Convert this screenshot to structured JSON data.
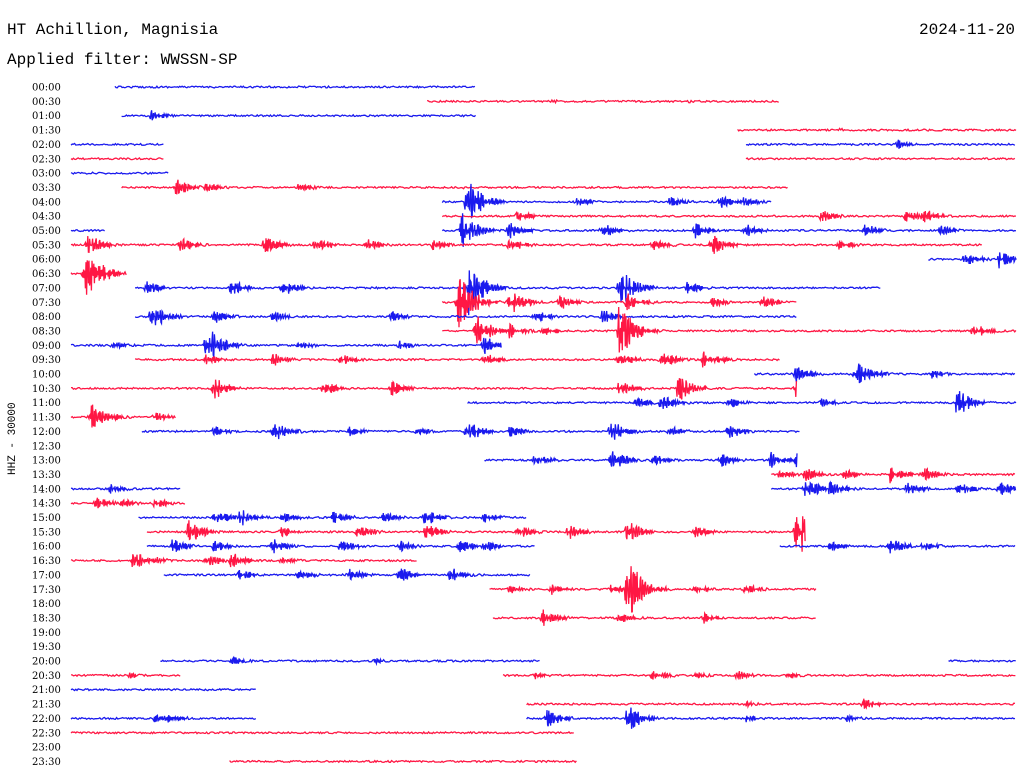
{
  "header": {
    "station": "HT Achillion, Magnisia",
    "date": "2024-11-20",
    "filter": "Applied filter: WWSSN-SP"
  },
  "chart_data": {
    "type": "line",
    "title": "HT Achillion, Magnisia",
    "ylabel": "HHZ - 30000",
    "x_unit": "minutes",
    "xlim": [
      0,
      30
    ],
    "colors": [
      "#1a1aee",
      "#ff1744"
    ],
    "rows": [
      {
        "label": "00:00",
        "segments": [
          [
            2.6,
            24.0
          ]
        ],
        "events": []
      },
      {
        "label": "00:30",
        "segments": [
          [
            21.1,
            42.0
          ]
        ],
        "events": [
          [
            28.5,
            2
          ],
          [
            36.5,
            2
          ]
        ]
      },
      {
        "label": "01:00",
        "segments": [
          [
            3.0,
            24.0
          ]
        ],
        "events": [
          [
            4.8,
            6
          ]
        ]
      },
      {
        "label": "01:30",
        "segments": [
          [
            39.5,
            56.0
          ]
        ],
        "events": [
          [
            45.5,
            2
          ]
        ]
      },
      {
        "label": "02:00",
        "segments": [
          [
            0.0,
            5.5
          ],
          [
            40.0,
            56.0
          ]
        ],
        "events": [
          [
            49.0,
            5
          ]
        ]
      },
      {
        "label": "02:30",
        "segments": [
          [
            0.0,
            5.5
          ],
          [
            40.0,
            56.0
          ]
        ],
        "events": []
      },
      {
        "label": "03:00",
        "segments": [
          [
            0.0,
            5.8
          ]
        ],
        "events": []
      },
      {
        "label": "03:30",
        "segments": [
          [
            3.0,
            42.5
          ]
        ],
        "events": [
          [
            6.2,
            10
          ],
          [
            8.0,
            6
          ],
          [
            13.5,
            5
          ],
          [
            23.0,
            2
          ]
        ]
      },
      {
        "label": "04:00",
        "segments": [
          [
            22.0,
            41.5
          ]
        ],
        "events": [
          [
            23.5,
            26
          ],
          [
            30.0,
            5
          ],
          [
            35.5,
            6
          ],
          [
            38.5,
            8
          ],
          [
            39.8,
            6
          ]
        ]
      },
      {
        "label": "04:30",
        "segments": [
          [
            22.0,
            56.0
          ]
        ],
        "events": [
          [
            26.5,
            6
          ],
          [
            44.5,
            7
          ],
          [
            49.5,
            6
          ],
          [
            50.5,
            9
          ]
        ]
      },
      {
        "label": "05:00",
        "segments": [
          [
            0.0,
            2.0
          ],
          [
            22.0,
            56.0
          ]
        ],
        "events": [
          [
            23.2,
            18
          ],
          [
            26.0,
            10
          ],
          [
            31.5,
            8
          ],
          [
            37.0,
            8
          ],
          [
            40.0,
            7
          ],
          [
            47.0,
            8
          ],
          [
            51.5,
            6
          ]
        ]
      },
      {
        "label": "05:30",
        "segments": [
          [
            0.0,
            54.0
          ]
        ],
        "events": [
          [
            1.0,
            12
          ],
          [
            6.5,
            8
          ],
          [
            11.5,
            9
          ],
          [
            14.5,
            8
          ],
          [
            17.5,
            7
          ],
          [
            21.5,
            6
          ],
          [
            26.0,
            8
          ],
          [
            34.5,
            7
          ],
          [
            38.0,
            12
          ],
          [
            45.5,
            6
          ]
        ]
      },
      {
        "label": "06:00",
        "segments": [
          [
            50.8,
            56.0
          ]
        ],
        "events": [
          [
            53.0,
            8
          ],
          [
            55.0,
            10
          ]
        ]
      },
      {
        "label": "06:30",
        "segments": [
          [
            0.0,
            3.3
          ]
        ],
        "events": [
          [
            0.8,
            30
          ],
          [
            1.5,
            15
          ]
        ]
      },
      {
        "label": "07:00",
        "segments": [
          [
            3.8,
            48.0
          ]
        ],
        "events": [
          [
            4.5,
            7
          ],
          [
            9.5,
            9
          ],
          [
            12.5,
            10
          ],
          [
            23.5,
            30
          ],
          [
            32.5,
            22
          ],
          [
            36.5,
            7
          ]
        ]
      },
      {
        "label": "07:30",
        "segments": [
          [
            22.0,
            43.0
          ]
        ],
        "events": [
          [
            23.0,
            30
          ],
          [
            26.0,
            14
          ],
          [
            29.0,
            8
          ],
          [
            33.0,
            10
          ],
          [
            38.0,
            6
          ],
          [
            41.0,
            7
          ]
        ]
      },
      {
        "label": "08:00",
        "segments": [
          [
            3.8,
            43.0
          ]
        ],
        "events": [
          [
            4.8,
            14
          ],
          [
            8.5,
            8
          ],
          [
            12.0,
            6
          ],
          [
            19.0,
            6
          ],
          [
            27.5,
            8
          ],
          [
            31.5,
            8
          ]
        ]
      },
      {
        "label": "08:30",
        "segments": [
          [
            22.0,
            56.0
          ]
        ],
        "events": [
          [
            24.0,
            18
          ],
          [
            26.0,
            8
          ],
          [
            28.0,
            6
          ],
          [
            32.5,
            30
          ],
          [
            53.5,
            9
          ]
        ]
      },
      {
        "label": "09:00",
        "segments": [
          [
            0.0,
            25.5
          ]
        ],
        "events": [
          [
            2.5,
            5
          ],
          [
            8.0,
            22
          ],
          [
            13.5,
            5
          ],
          [
            19.5,
            5
          ],
          [
            24.5,
            10
          ]
        ]
      },
      {
        "label": "09:30",
        "segments": [
          [
            3.8,
            42.0
          ]
        ],
        "events": [
          [
            8.0,
            6
          ],
          [
            12.0,
            7
          ],
          [
            16.0,
            6
          ],
          [
            24.5,
            8
          ],
          [
            32.5,
            8
          ],
          [
            35.0,
            10
          ],
          [
            37.5,
            12
          ]
        ]
      },
      {
        "label": "10:00",
        "segments": [
          [
            40.5,
            56.0
          ]
        ],
        "events": [
          [
            43.0,
            9
          ],
          [
            46.5,
            17
          ],
          [
            51.0,
            5
          ]
        ]
      },
      {
        "label": "10:30",
        "segments": [
          [
            0.0,
            43.0
          ]
        ],
        "events": [
          [
            8.5,
            12
          ],
          [
            15.0,
            8
          ],
          [
            19.0,
            8
          ],
          [
            32.5,
            10
          ],
          [
            36.0,
            14
          ],
          [
            43.0,
            14
          ]
        ]
      },
      {
        "label": "11:00",
        "segments": [
          [
            23.5,
            56.0
          ]
        ],
        "events": [
          [
            33.5,
            6
          ],
          [
            35.0,
            10
          ],
          [
            39.0,
            6
          ],
          [
            44.5,
            5
          ],
          [
            52.5,
            15
          ]
        ]
      },
      {
        "label": "11:30",
        "segments": [
          [
            0.0,
            6.2
          ]
        ],
        "events": [
          [
            1.2,
            14
          ],
          [
            2.5,
            4
          ],
          [
            5.0,
            6
          ]
        ]
      },
      {
        "label": "12:00",
        "segments": [
          [
            4.2,
            43.2
          ]
        ],
        "events": [
          [
            8.5,
            6
          ],
          [
            12.0,
            12
          ],
          [
            16.5,
            6
          ],
          [
            20.5,
            5
          ],
          [
            23.5,
            12
          ],
          [
            26.0,
            6
          ],
          [
            32.0,
            12
          ],
          [
            35.5,
            6
          ],
          [
            39.0,
            8
          ]
        ]
      },
      {
        "label": "12:30",
        "segments": [],
        "events": []
      },
      {
        "label": "13:00",
        "segments": [
          [
            24.5,
            43.0
          ]
        ],
        "events": [
          [
            27.5,
            8
          ],
          [
            32.0,
            12
          ],
          [
            34.5,
            8
          ],
          [
            38.5,
            8
          ],
          [
            41.5,
            9
          ],
          [
            43.0,
            8
          ]
        ]
      },
      {
        "label": "13:30",
        "segments": [
          [
            41.5,
            56.0
          ]
        ],
        "events": [
          [
            42.0,
            6
          ],
          [
            43.5,
            8
          ],
          [
            45.8,
            6
          ],
          [
            48.5,
            10
          ],
          [
            50.5,
            8
          ]
        ]
      },
      {
        "label": "14:00",
        "segments": [
          [
            0.0,
            6.5
          ],
          [
            41.5,
            56.0
          ]
        ],
        "events": [
          [
            2.3,
            6
          ],
          [
            43.5,
            12
          ],
          [
            45.0,
            10
          ],
          [
            49.5,
            8
          ],
          [
            52.5,
            8
          ],
          [
            55.0,
            8
          ]
        ]
      },
      {
        "label": "14:30",
        "segments": [
          [
            0.0,
            6.8
          ]
        ],
        "events": [
          [
            1.5,
            7
          ],
          [
            3.0,
            5
          ],
          [
            5.0,
            6
          ]
        ]
      },
      {
        "label": "15:00",
        "segments": [
          [
            4.0,
            27.0
          ]
        ],
        "events": [
          [
            8.5,
            9
          ],
          [
            10.0,
            10
          ],
          [
            12.5,
            7
          ],
          [
            15.5,
            8
          ],
          [
            18.5,
            7
          ],
          [
            21.0,
            9
          ],
          [
            24.5,
            6
          ]
        ]
      },
      {
        "label": "15:30",
        "segments": [
          [
            4.5,
            43.5
          ]
        ],
        "events": [
          [
            7.0,
            14
          ],
          [
            12.5,
            7
          ],
          [
            17.0,
            8
          ],
          [
            21.0,
            10
          ],
          [
            26.5,
            8
          ],
          [
            29.5,
            8
          ],
          [
            33.0,
            12
          ],
          [
            37.0,
            7
          ],
          [
            43.0,
            30
          ]
        ]
      },
      {
        "label": "16:00",
        "segments": [
          [
            4.5,
            27.5
          ],
          [
            42.0,
            56.0
          ]
        ],
        "events": [
          [
            6.0,
            8
          ],
          [
            8.5,
            6
          ],
          [
            12.0,
            8
          ],
          [
            16.0,
            7
          ],
          [
            19.5,
            6
          ],
          [
            23.0,
            8
          ],
          [
            24.5,
            6
          ],
          [
            45.0,
            6
          ],
          [
            48.5,
            9
          ],
          [
            50.5,
            6
          ]
        ]
      },
      {
        "label": "16:30",
        "segments": [
          [
            0.0,
            20.5
          ]
        ],
        "events": [
          [
            3.7,
            10
          ],
          [
            5.0,
            4
          ],
          [
            8.0,
            7
          ],
          [
            9.5,
            9
          ],
          [
            12.5,
            5
          ]
        ]
      },
      {
        "label": "17:00",
        "segments": [
          [
            5.5,
            27.2
          ]
        ],
        "events": [
          [
            10.0,
            6
          ],
          [
            13.5,
            6
          ],
          [
            16.5,
            7
          ],
          [
            19.5,
            8
          ],
          [
            22.5,
            8
          ]
        ]
      },
      {
        "label": "17:30",
        "segments": [
          [
            24.8,
            44.2
          ]
        ],
        "events": [
          [
            26.0,
            5
          ],
          [
            28.5,
            6
          ],
          [
            32.0,
            6
          ],
          [
            33.0,
            38
          ],
          [
            37.0,
            5
          ],
          [
            40.0,
            6
          ]
        ]
      },
      {
        "label": "18:00",
        "segments": [],
        "events": []
      },
      {
        "label": "18:30",
        "segments": [
          [
            25.0,
            44.2
          ]
        ],
        "events": [
          [
            28.0,
            10
          ],
          [
            32.5,
            6
          ],
          [
            37.5,
            6
          ]
        ]
      },
      {
        "label": "19:00",
        "segments": [],
        "events": []
      },
      {
        "label": "19:30",
        "segments": [],
        "events": []
      },
      {
        "label": "20:00",
        "segments": [
          [
            5.3,
            27.8
          ],
          [
            52.0,
            56.0
          ]
        ],
        "events": [
          [
            9.5,
            5
          ],
          [
            18.0,
            3
          ]
        ]
      },
      {
        "label": "20:30",
        "segments": [
          [
            0.0,
            6.5
          ],
          [
            25.6,
            56.0
          ]
        ],
        "events": [
          [
            3.5,
            3
          ],
          [
            27.5,
            4
          ],
          [
            34.5,
            7
          ],
          [
            37.0,
            4
          ],
          [
            39.5,
            5
          ],
          [
            42.5,
            4
          ]
        ]
      },
      {
        "label": "21:00",
        "segments": [
          [
            0.0,
            11.0
          ]
        ],
        "events": []
      },
      {
        "label": "21:30",
        "segments": [
          [
            27.0,
            56.0
          ]
        ],
        "events": [
          [
            40.0,
            3
          ],
          [
            47.0,
            6
          ]
        ]
      },
      {
        "label": "22:00",
        "segments": [
          [
            0.0,
            11.0
          ],
          [
            27.0,
            56.0
          ]
        ],
        "events": [
          [
            5.0,
            5
          ],
          [
            5.8,
            6
          ],
          [
            28.2,
            10
          ],
          [
            33.0,
            14
          ],
          [
            40.0,
            4
          ],
          [
            46.0,
            4
          ]
        ]
      },
      {
        "label": "22:30",
        "segments": [
          [
            0.0,
            29.8
          ]
        ],
        "events": []
      },
      {
        "label": "23:00",
        "segments": [],
        "events": []
      },
      {
        "label": "23:30",
        "segments": [
          [
            9.4,
            30.0
          ]
        ],
        "events": []
      }
    ]
  }
}
